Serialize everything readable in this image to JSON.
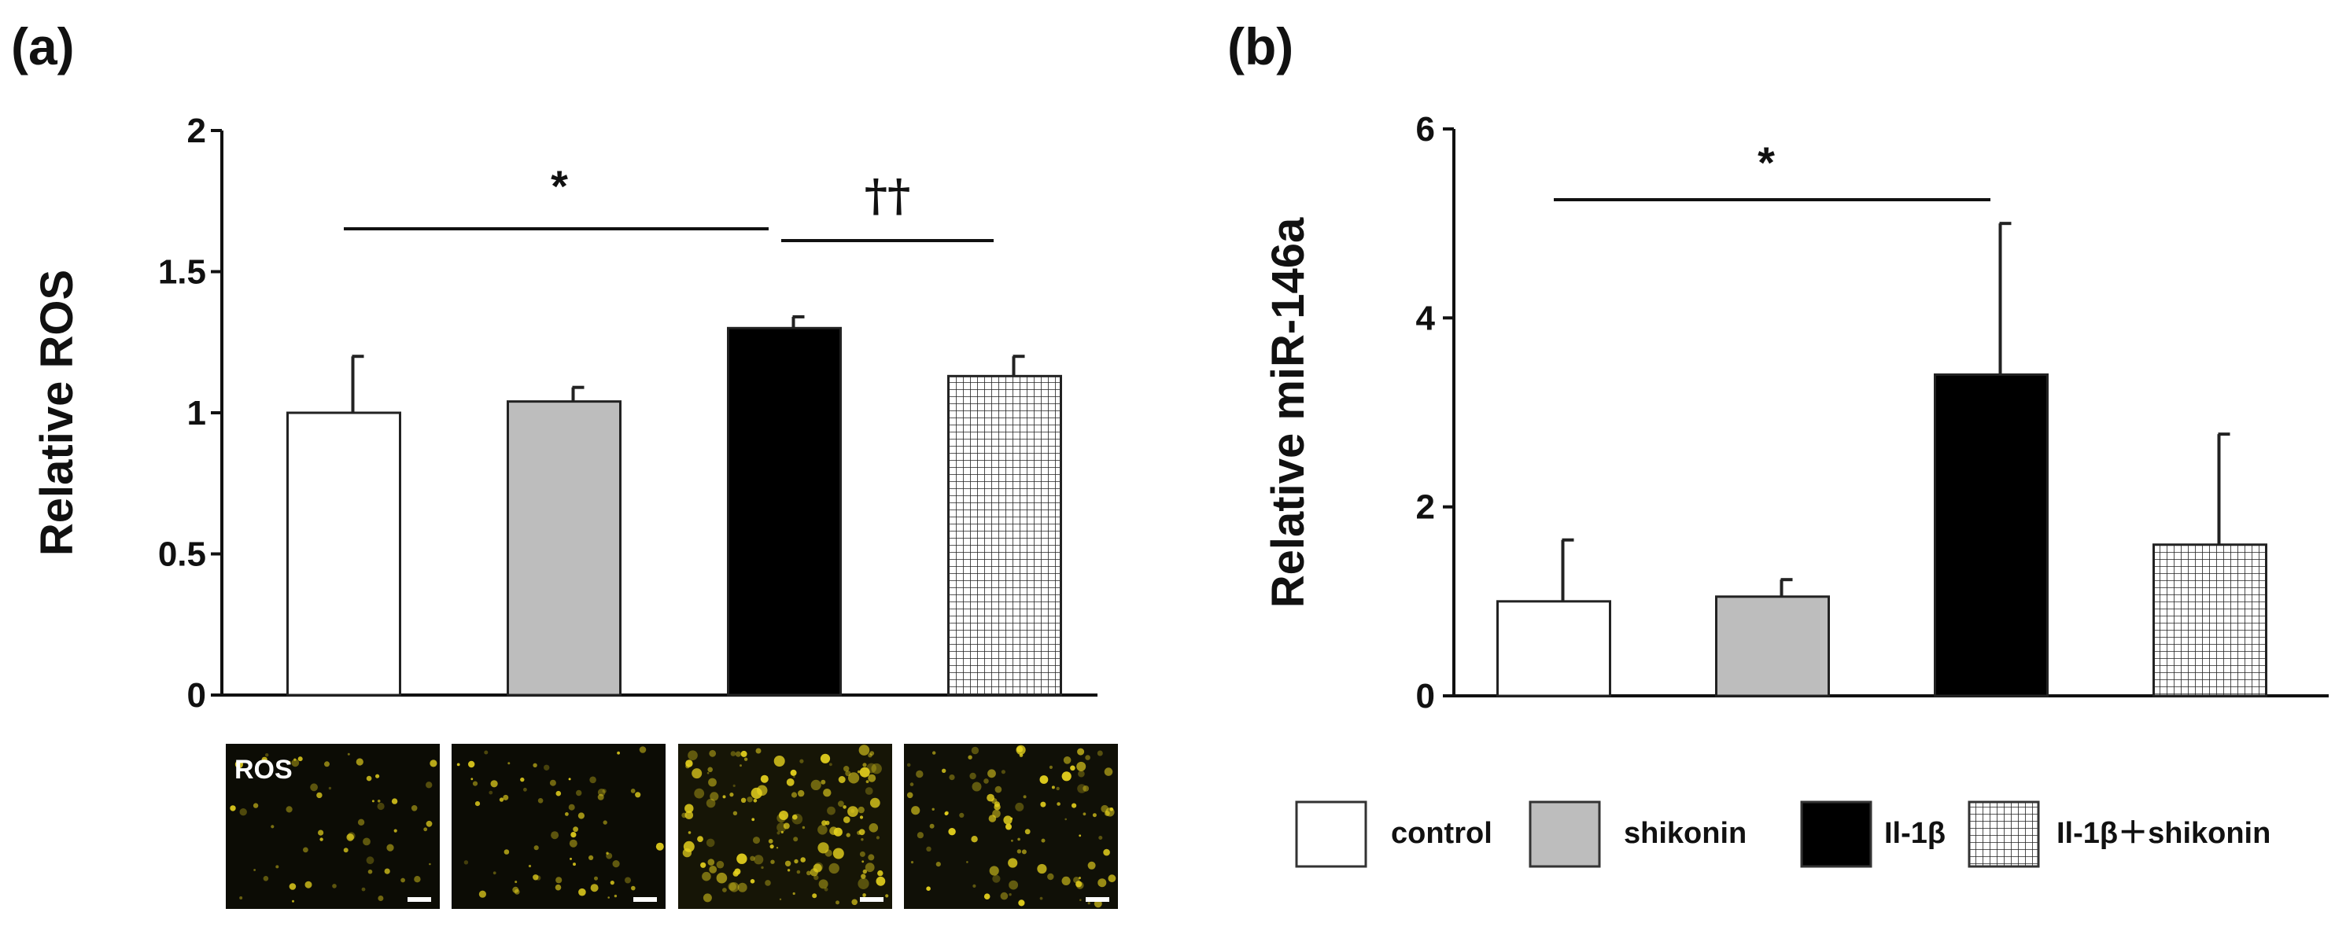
{
  "panels": {
    "a": {
      "letter": "(a)",
      "micrograph_label": "ROS"
    },
    "b": {
      "letter": "(b)"
    }
  },
  "significance": {
    "a_star": "*",
    "a_dagger": "††",
    "b_star": "*"
  },
  "legend": [
    {
      "label": "control",
      "fill": "#ffffff"
    },
    {
      "label": "shikonin",
      "fill": "#bdbdbd"
    },
    {
      "label": "Il-1β",
      "fill": "#000000"
    },
    {
      "label": "Il-1β＋shikonin",
      "fill": "grid"
    }
  ],
  "colors": {
    "control": "#ffffff",
    "shikonin": "#bdbdbd",
    "il1b": "#000000",
    "fluorescence": "#e6d21e"
  },
  "chart_data": [
    {
      "type": "bar",
      "panel": "(a)",
      "categories": [
        "control",
        "shikonin",
        "Il-1β",
        "Il-1β＋shikonin"
      ],
      "values": [
        1.0,
        1.04,
        1.3,
        1.13
      ],
      "errors": [
        0.2,
        0.05,
        0.04,
        0.07
      ],
      "ylabel": "Relative ROS",
      "ylim": [
        0,
        2
      ],
      "yticks": [
        "0",
        "0.5",
        "1",
        "1.5",
        "2"
      ],
      "annotations": [
        {
          "text": "*",
          "from": "control",
          "to": "Il-1β"
        },
        {
          "text": "††",
          "from": "Il-1β",
          "to": "Il-1β＋shikonin"
        }
      ]
    },
    {
      "type": "bar",
      "panel": "(b)",
      "categories": [
        "control",
        "shikonin",
        "Il-1β",
        "Il-1β＋shikonin"
      ],
      "values": [
        1.0,
        1.05,
        3.4,
        1.6
      ],
      "errors": [
        0.65,
        0.18,
        1.6,
        1.17
      ],
      "ylabel": "Relative miR-146a",
      "ylim": [
        0,
        6
      ],
      "yticks": [
        "0",
        "2",
        "4",
        "6"
      ],
      "annotations": [
        {
          "text": "*",
          "from": "control",
          "to": "Il-1β"
        }
      ]
    }
  ]
}
